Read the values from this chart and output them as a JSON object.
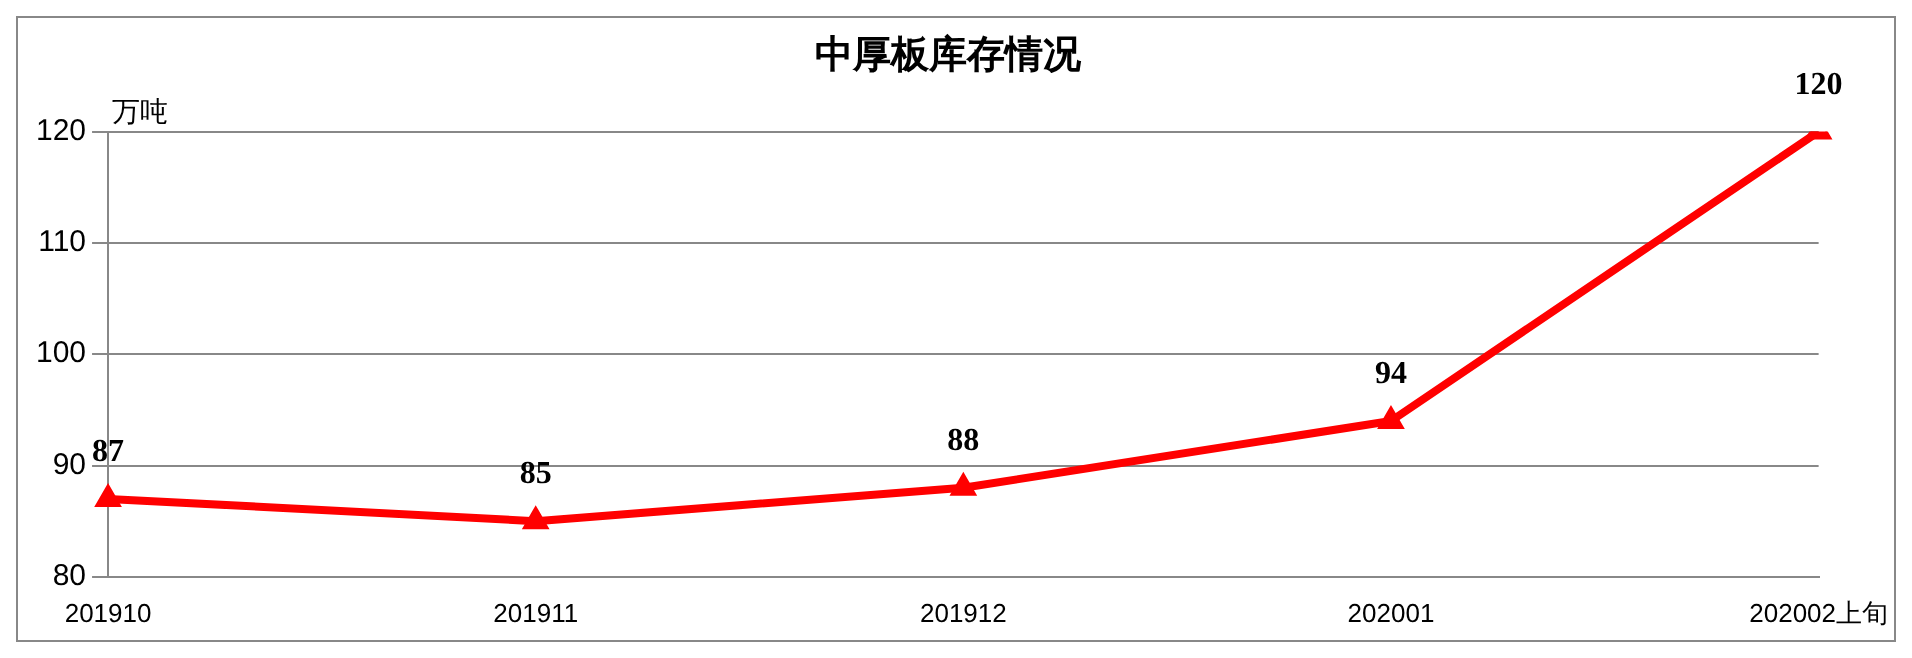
{
  "chart_data": {
    "type": "line",
    "title": "中厚板库存情况",
    "ylabel": "万吨",
    "categories": [
      "201910",
      "201911",
      "201912",
      "202001",
      "202002上旬"
    ],
    "series": [
      {
        "color": "#ff0000",
        "values": [
          87,
          85,
          88,
          94,
          120
        ]
      }
    ],
    "ylim": [
      80,
      120
    ],
    "yticks": [
      80,
      90,
      100,
      110,
      120
    ],
    "grid": "y",
    "marker": "triangle",
    "line_style": "solid",
    "data_labels": true,
    "legend": false
  }
}
